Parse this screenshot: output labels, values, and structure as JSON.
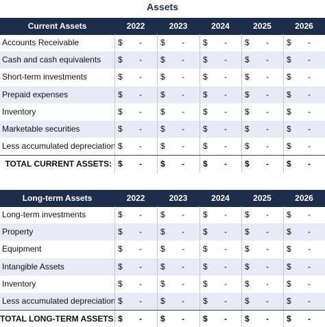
{
  "title": "Assets",
  "tables": [
    {
      "header": [
        "Current Assets",
        "2022",
        "2023",
        "2024",
        "2025",
        "2026"
      ],
      "rows": [
        {
          "label": "Accounts Receivable",
          "cells": [
            [
              "$",
              "-"
            ],
            [
              "$",
              "-"
            ],
            [
              "$",
              "-"
            ],
            [
              "$",
              "-"
            ],
            [
              "$",
              "-"
            ]
          ]
        },
        {
          "label": "Cash and cash equivalents",
          "cells": [
            [
              "$",
              "-"
            ],
            [
              "$",
              "-"
            ],
            [
              "$",
              "-"
            ],
            [
              "$",
              "-"
            ],
            [
              "$",
              "-"
            ]
          ]
        },
        {
          "label": "Short-term investments",
          "cells": [
            [
              "$",
              "-"
            ],
            [
              "$",
              "-"
            ],
            [
              "$",
              "-"
            ],
            [
              "$",
              "-"
            ],
            [
              "$",
              "-"
            ]
          ]
        },
        {
          "label": "Prepaid expenses",
          "cells": [
            [
              "$",
              "-"
            ],
            [
              "$",
              "-"
            ],
            [
              "$",
              "-"
            ],
            [
              "$",
              "-"
            ],
            [
              "$",
              "-"
            ]
          ]
        },
        {
          "label": "Inventory",
          "cells": [
            [
              "$",
              "-"
            ],
            [
              "$",
              "-"
            ],
            [
              "$",
              "-"
            ],
            [
              "$",
              "-"
            ],
            [
              "$",
              "-"
            ]
          ]
        },
        {
          "label": "Marketable securities",
          "cells": [
            [
              "$",
              "-"
            ],
            [
              "$",
              "-"
            ],
            [
              "$",
              "-"
            ],
            [
              "$",
              "-"
            ],
            [
              "$",
              "-"
            ]
          ]
        },
        {
          "label": "Less accumulated depreciation",
          "cells": [
            [
              "$",
              "-"
            ],
            [
              "$",
              "-"
            ],
            [
              "$",
              "-"
            ],
            [
              "$",
              "-"
            ],
            [
              "$",
              "-"
            ]
          ]
        }
      ],
      "total": {
        "label": "TOTAL CURRENT ASSETS:",
        "cells": [
          [
            "$",
            "-"
          ],
          [
            "$",
            "-"
          ],
          [
            "$",
            "-"
          ],
          [
            "$",
            "-"
          ],
          [
            "$",
            "-"
          ]
        ]
      }
    },
    {
      "header": [
        "Long-term Assets",
        "2022",
        "2023",
        "2024",
        "2025",
        "2026"
      ],
      "rows": [
        {
          "label": "Long-term investments",
          "cells": [
            [
              "$",
              "-"
            ],
            [
              "$",
              "-"
            ],
            [
              "$",
              "-"
            ],
            [
              "$",
              "-"
            ],
            [
              "$",
              "-"
            ]
          ]
        },
        {
          "label": "Property",
          "cells": [
            [
              "$",
              "-"
            ],
            [
              "$",
              "-"
            ],
            [
              "$",
              "-"
            ],
            [
              "$",
              "-"
            ],
            [
              "$",
              "-"
            ]
          ]
        },
        {
          "label": "Equipment",
          "cells": [
            [
              "$",
              "-"
            ],
            [
              "$",
              "-"
            ],
            [
              "$",
              "-"
            ],
            [
              "$",
              "-"
            ],
            [
              "$",
              "-"
            ]
          ]
        },
        {
          "label": "Intangible Assets",
          "cells": [
            [
              "$",
              "-"
            ],
            [
              "$",
              "-"
            ],
            [
              "$",
              "-"
            ],
            [
              "$",
              "-"
            ],
            [
              "$",
              "-"
            ]
          ]
        },
        {
          "label": "Inventory",
          "cells": [
            [
              "$",
              "-"
            ],
            [
              "$",
              "-"
            ],
            [
              "$",
              "-"
            ],
            [
              "$",
              "-"
            ],
            [
              "$",
              "-"
            ]
          ]
        },
        {
          "label": "Less accumulated depreciation",
          "cells": [
            [
              "$",
              "-"
            ],
            [
              "$",
              "-"
            ],
            [
              "$",
              "-"
            ],
            [
              "$",
              "-"
            ],
            [
              "$",
              "-"
            ]
          ]
        }
      ],
      "total": {
        "label": "TOTAL LONG-TERM ASSETS:",
        "cells": [
          [
            "$",
            "-"
          ],
          [
            "$",
            "-"
          ],
          [
            "$",
            "-"
          ],
          [
            "$",
            "-"
          ],
          [
            "$",
            "-"
          ]
        ]
      }
    }
  ]
}
